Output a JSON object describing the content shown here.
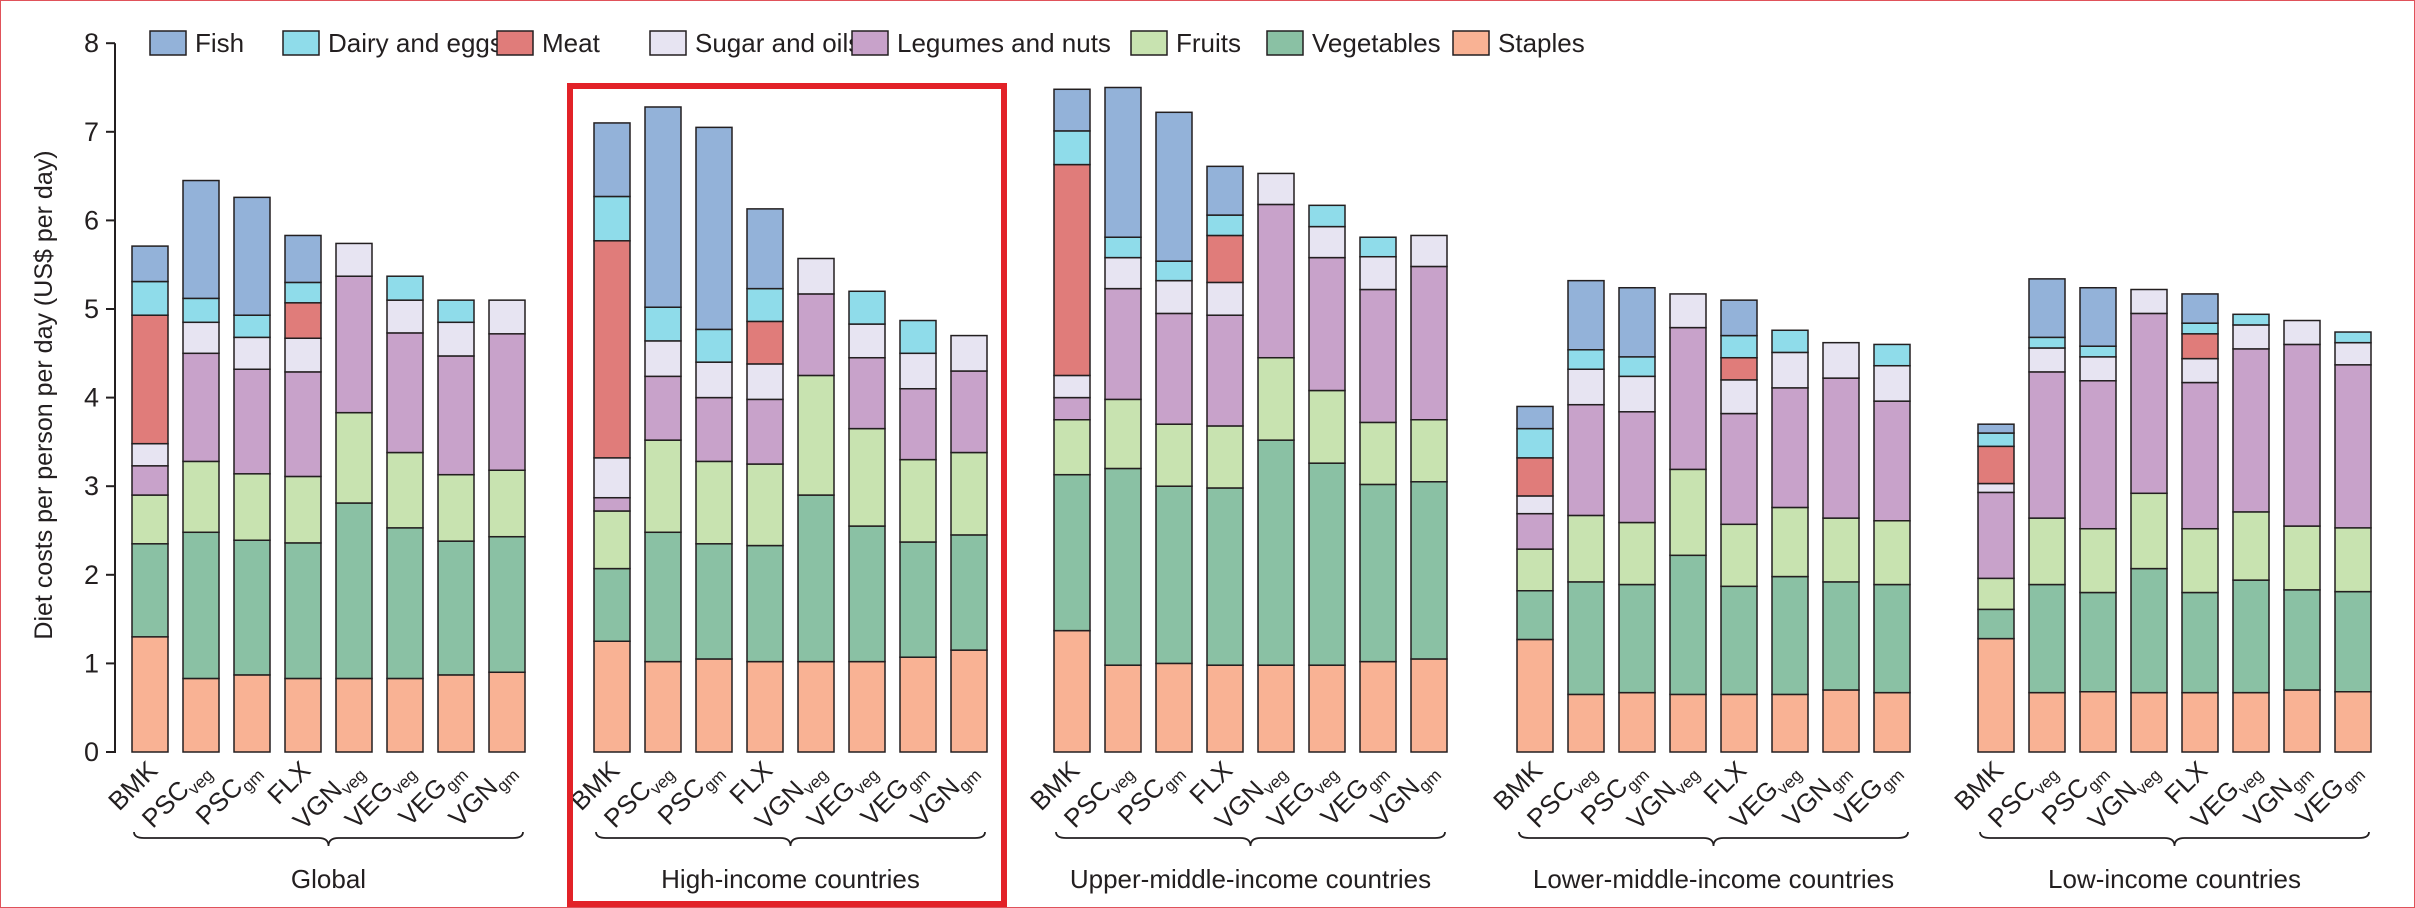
{
  "colors": {
    "Fish": "#93b2d9",
    "Dairy and eggs": "#8fdcea",
    "Meat": "#e07c7a",
    "Sugar and oils": "#e7e4f2",
    "Legumes and nuts": "#c8a2ca",
    "Fruits": "#c8e3b0",
    "Vegetables": "#8ac1a4",
    "Staples": "#f9b294",
    "highlight": "#e22228",
    "frame": "#e0525a"
  },
  "chart_data": {
    "type": "bar",
    "stacked": true,
    "ylabel": "Diet costs per person per day (US$ per day)",
    "ylim": [
      0,
      8
    ],
    "yticks": [
      0,
      1,
      2,
      3,
      4,
      5,
      6,
      7,
      8
    ],
    "grid": false,
    "legend_position": "top",
    "legend": [
      "Fish",
      "Dairy and eggs",
      "Meat",
      "Sugar and oils",
      "Legumes and nuts",
      "Fruits",
      "Vegetables",
      "Staples"
    ],
    "stack_order": [
      "Staples",
      "Vegetables",
      "Fruits",
      "Legumes and nuts",
      "Sugar and oils",
      "Meat",
      "Dairy and eggs",
      "Fish"
    ],
    "highlighted_group": "High-income countries",
    "groups": [
      {
        "name": "Global",
        "bars": [
          {
            "label": "BMK",
            "sub": "",
            "values": {
              "Staples": 1.3,
              "Vegetables": 1.05,
              "Fruits": 0.55,
              "Legumes and nuts": 0.33,
              "Sugar and oils": 0.25,
              "Meat": 1.45,
              "Dairy and eggs": 0.38,
              "Fish": 0.4
            }
          },
          {
            "label": "PSC",
            "sub": "veg",
            "values": {
              "Staples": 0.83,
              "Vegetables": 1.65,
              "Fruits": 0.8,
              "Legumes and nuts": 1.22,
              "Sugar and oils": 0.35,
              "Meat": 0,
              "Dairy and eggs": 0.27,
              "Fish": 1.33
            }
          },
          {
            "label": "PSC",
            "sub": "gm",
            "values": {
              "Staples": 0.87,
              "Vegetables": 1.52,
              "Fruits": 0.75,
              "Legumes and nuts": 1.18,
              "Sugar and oils": 0.36,
              "Meat": 0,
              "Dairy and eggs": 0.25,
              "Fish": 1.33
            }
          },
          {
            "label": "FLX",
            "sub": "",
            "values": {
              "Staples": 0.83,
              "Vegetables": 1.53,
              "Fruits": 0.75,
              "Legumes and nuts": 1.18,
              "Sugar and oils": 0.38,
              "Meat": 0.4,
              "Dairy and eggs": 0.23,
              "Fish": 0.53
            }
          },
          {
            "label": "VGN",
            "sub": "veg",
            "values": {
              "Staples": 0.83,
              "Vegetables": 1.98,
              "Fruits": 1.02,
              "Legumes and nuts": 1.54,
              "Sugar and oils": 0.37,
              "Meat": 0,
              "Dairy and eggs": 0,
              "Fish": 0
            }
          },
          {
            "label": "VEG",
            "sub": "veg",
            "values": {
              "Staples": 0.83,
              "Vegetables": 1.7,
              "Fruits": 0.85,
              "Legumes and nuts": 1.35,
              "Sugar and oils": 0.37,
              "Meat": 0,
              "Dairy and eggs": 0.27,
              "Fish": 0
            }
          },
          {
            "label": "VEG",
            "sub": "gm",
            "values": {
              "Staples": 0.87,
              "Vegetables": 1.51,
              "Fruits": 0.75,
              "Legumes and nuts": 1.34,
              "Sugar and oils": 0.38,
              "Meat": 0,
              "Dairy and eggs": 0.25,
              "Fish": 0
            }
          },
          {
            "label": "VGN",
            "sub": "gm",
            "values": {
              "Staples": 0.9,
              "Vegetables": 1.53,
              "Fruits": 0.75,
              "Legumes and nuts": 1.54,
              "Sugar and oils": 0.38,
              "Meat": 0,
              "Dairy and eggs": 0,
              "Fish": 0
            }
          }
        ]
      },
      {
        "name": "High-income countries",
        "bars": [
          {
            "label": "BMK",
            "sub": "",
            "values": {
              "Staples": 1.25,
              "Vegetables": 0.82,
              "Fruits": 0.65,
              "Legumes and nuts": 0.15,
              "Sugar and oils": 0.45,
              "Meat": 2.45,
              "Dairy and eggs": 0.5,
              "Fish": 0.83
            }
          },
          {
            "label": "PSC",
            "sub": "veg",
            "values": {
              "Staples": 1.02,
              "Vegetables": 1.46,
              "Fruits": 1.04,
              "Legumes and nuts": 0.72,
              "Sugar and oils": 0.4,
              "Meat": 0,
              "Dairy and eggs": 0.38,
              "Fish": 2.26
            }
          },
          {
            "label": "PSC",
            "sub": "gm",
            "values": {
              "Staples": 1.05,
              "Vegetables": 1.3,
              "Fruits": 0.93,
              "Legumes and nuts": 0.72,
              "Sugar and oils": 0.4,
              "Meat": 0,
              "Dairy and eggs": 0.37,
              "Fish": 2.28
            }
          },
          {
            "label": "FLX",
            "sub": "",
            "values": {
              "Staples": 1.02,
              "Vegetables": 1.31,
              "Fruits": 0.92,
              "Legumes and nuts": 0.73,
              "Sugar and oils": 0.4,
              "Meat": 0.48,
              "Dairy and eggs": 0.37,
              "Fish": 0.9
            }
          },
          {
            "label": "VGN",
            "sub": "veg",
            "values": {
              "Staples": 1.02,
              "Vegetables": 1.88,
              "Fruits": 1.35,
              "Legumes and nuts": 0.92,
              "Sugar and oils": 0.4,
              "Meat": 0,
              "Dairy and eggs": 0,
              "Fish": 0
            }
          },
          {
            "label": "VEG",
            "sub": "veg",
            "values": {
              "Staples": 1.02,
              "Vegetables": 1.53,
              "Fruits": 1.1,
              "Legumes and nuts": 0.8,
              "Sugar and oils": 0.38,
              "Meat": 0,
              "Dairy and eggs": 0.37,
              "Fish": 0
            }
          },
          {
            "label": "VEG",
            "sub": "gm",
            "values": {
              "Staples": 1.07,
              "Vegetables": 1.3,
              "Fruits": 0.93,
              "Legumes and nuts": 0.8,
              "Sugar and oils": 0.4,
              "Meat": 0,
              "Dairy and eggs": 0.37,
              "Fish": 0
            }
          },
          {
            "label": "VGN",
            "sub": "gm",
            "values": {
              "Staples": 1.15,
              "Vegetables": 1.3,
              "Fruits": 0.93,
              "Legumes and nuts": 0.92,
              "Sugar and oils": 0.4,
              "Meat": 0,
              "Dairy and eggs": 0,
              "Fish": 0
            }
          }
        ]
      },
      {
        "name": "Upper-middle-income countries",
        "bars": [
          {
            "label": "BMK",
            "sub": "",
            "values": {
              "Staples": 1.37,
              "Vegetables": 1.76,
              "Fruits": 0.62,
              "Legumes and nuts": 0.25,
              "Sugar and oils": 0.25,
              "Meat": 2.38,
              "Dairy and eggs": 0.38,
              "Fish": 0.47
            }
          },
          {
            "label": "PSC",
            "sub": "veg",
            "values": {
              "Staples": 0.98,
              "Vegetables": 2.22,
              "Fruits": 0.78,
              "Legumes and nuts": 1.25,
              "Sugar and oils": 0.35,
              "Meat": 0,
              "Dairy and eggs": 0.23,
              "Fish": 1.69
            }
          },
          {
            "label": "PSC",
            "sub": "gm",
            "values": {
              "Staples": 1.0,
              "Vegetables": 2.0,
              "Fruits": 0.7,
              "Legumes and nuts": 1.25,
              "Sugar and oils": 0.37,
              "Meat": 0,
              "Dairy and eggs": 0.22,
              "Fish": 1.68
            }
          },
          {
            "label": "FLX",
            "sub": "",
            "values": {
              "Staples": 0.98,
              "Vegetables": 2.0,
              "Fruits": 0.7,
              "Legumes and nuts": 1.25,
              "Sugar and oils": 0.37,
              "Meat": 0.53,
              "Dairy and eggs": 0.23,
              "Fish": 0.55
            }
          },
          {
            "label": "VGN",
            "sub": "veg",
            "values": {
              "Staples": 0.98,
              "Vegetables": 2.54,
              "Fruits": 0.93,
              "Legumes and nuts": 1.73,
              "Sugar and oils": 0.35,
              "Meat": 0,
              "Dairy and eggs": 0,
              "Fish": 0
            }
          },
          {
            "label": "VEG",
            "sub": "veg",
            "values": {
              "Staples": 0.98,
              "Vegetables": 2.28,
              "Fruits": 0.82,
              "Legumes and nuts": 1.5,
              "Sugar and oils": 0.35,
              "Meat": 0,
              "Dairy and eggs": 0.24,
              "Fish": 0
            }
          },
          {
            "label": "VEG",
            "sub": "gm",
            "values": {
              "Staples": 1.02,
              "Vegetables": 2.0,
              "Fruits": 0.7,
              "Legumes and nuts": 1.5,
              "Sugar and oils": 0.37,
              "Meat": 0,
              "Dairy and eggs": 0.22,
              "Fish": 0
            }
          },
          {
            "label": "VGN",
            "sub": "gm",
            "values": {
              "Staples": 1.05,
              "Vegetables": 2.0,
              "Fruits": 0.7,
              "Legumes and nuts": 1.73,
              "Sugar and oils": 0.35,
              "Meat": 0,
              "Dairy and eggs": 0,
              "Fish": 0
            }
          }
        ]
      },
      {
        "name": "Lower-middle-income countries",
        "bars": [
          {
            "label": "BMK",
            "sub": "",
            "values": {
              "Staples": 1.27,
              "Vegetables": 0.55,
              "Fruits": 0.47,
              "Legumes and nuts": 0.4,
              "Sugar and oils": 0.2,
              "Meat": 0.43,
              "Dairy and eggs": 0.33,
              "Fish": 0.25
            }
          },
          {
            "label": "PSC",
            "sub": "veg",
            "values": {
              "Staples": 0.65,
              "Vegetables": 1.27,
              "Fruits": 0.75,
              "Legumes and nuts": 1.25,
              "Sugar and oils": 0.4,
              "Meat": 0,
              "Dairy and eggs": 0.22,
              "Fish": 0.78
            }
          },
          {
            "label": "PSC",
            "sub": "gm",
            "values": {
              "Staples": 0.67,
              "Vegetables": 1.22,
              "Fruits": 0.7,
              "Legumes and nuts": 1.25,
              "Sugar and oils": 0.4,
              "Meat": 0,
              "Dairy and eggs": 0.22,
              "Fish": 0.78
            }
          },
          {
            "label": "VGN",
            "sub": "veg",
            "values": {
              "Staples": 0.65,
              "Vegetables": 1.57,
              "Fruits": 0.97,
              "Legumes and nuts": 1.6,
              "Sugar and oils": 0.38,
              "Meat": 0,
              "Dairy and eggs": 0,
              "Fish": 0
            }
          },
          {
            "label": "FLX",
            "sub": "",
            "values": {
              "Staples": 0.65,
              "Vegetables": 1.22,
              "Fruits": 0.7,
              "Legumes and nuts": 1.25,
              "Sugar and oils": 0.38,
              "Meat": 0.25,
              "Dairy and eggs": 0.25,
              "Fish": 0.4
            }
          },
          {
            "label": "VEG",
            "sub": "veg",
            "values": {
              "Staples": 0.65,
              "Vegetables": 1.33,
              "Fruits": 0.78,
              "Legumes and nuts": 1.35,
              "Sugar and oils": 0.4,
              "Meat": 0,
              "Dairy and eggs": 0.25,
              "Fish": 0
            }
          },
          {
            "label": "VGN",
            "sub": "gm",
            "values": {
              "Staples": 0.7,
              "Vegetables": 1.22,
              "Fruits": 0.72,
              "Legumes and nuts": 1.58,
              "Sugar and oils": 0.4,
              "Meat": 0,
              "Dairy and eggs": 0,
              "Fish": 0
            }
          },
          {
            "label": "VEG",
            "sub": "gm",
            "values": {
              "Staples": 0.67,
              "Vegetables": 1.22,
              "Fruits": 0.72,
              "Legumes and nuts": 1.35,
              "Sugar and oils": 0.4,
              "Meat": 0,
              "Dairy and eggs": 0.24,
              "Fish": 0
            }
          }
        ]
      },
      {
        "name": "Low-income countries",
        "bars": [
          {
            "label": "BMK",
            "sub": "",
            "values": {
              "Staples": 1.28,
              "Vegetables": 0.33,
              "Fruits": 0.35,
              "Legumes and nuts": 0.97,
              "Sugar and oils": 0.1,
              "Meat": 0.42,
              "Dairy and eggs": 0.15,
              "Fish": 0.1
            }
          },
          {
            "label": "PSC",
            "sub": "veg",
            "values": {
              "Staples": 0.67,
              "Vegetables": 1.22,
              "Fruits": 0.75,
              "Legumes and nuts": 1.65,
              "Sugar and oils": 0.27,
              "Meat": 0,
              "Dairy and eggs": 0.12,
              "Fish": 0.66
            }
          },
          {
            "label": "PSC",
            "sub": "gm",
            "values": {
              "Staples": 0.68,
              "Vegetables": 1.12,
              "Fruits": 0.72,
              "Legumes and nuts": 1.67,
              "Sugar and oils": 0.27,
              "Meat": 0,
              "Dairy and eggs": 0.12,
              "Fish": 0.66
            }
          },
          {
            "label": "VGN",
            "sub": "veg",
            "values": {
              "Staples": 0.67,
              "Vegetables": 1.4,
              "Fruits": 0.85,
              "Legumes and nuts": 2.03,
              "Sugar and oils": 0.27,
              "Meat": 0,
              "Dairy and eggs": 0,
              "Fish": 0
            }
          },
          {
            "label": "FLX",
            "sub": "",
            "values": {
              "Staples": 0.67,
              "Vegetables": 1.13,
              "Fruits": 0.72,
              "Legumes and nuts": 1.65,
              "Sugar and oils": 0.27,
              "Meat": 0.28,
              "Dairy and eggs": 0.12,
              "Fish": 0.33
            }
          },
          {
            "label": "VEG",
            "sub": "veg",
            "values": {
              "Staples": 0.67,
              "Vegetables": 1.27,
              "Fruits": 0.77,
              "Legumes and nuts": 1.84,
              "Sugar and oils": 0.27,
              "Meat": 0,
              "Dairy and eggs": 0.12,
              "Fish": 0
            }
          },
          {
            "label": "VGN",
            "sub": "gm",
            "values": {
              "Staples": 0.7,
              "Vegetables": 1.13,
              "Fruits": 0.72,
              "Legumes and nuts": 2.05,
              "Sugar and oils": 0.27,
              "Meat": 0,
              "Dairy and eggs": 0,
              "Fish": 0
            }
          },
          {
            "label": "VEG",
            "sub": "gm",
            "values": {
              "Staples": 0.68,
              "Vegetables": 1.13,
              "Fruits": 0.72,
              "Legumes and nuts": 1.84,
              "Sugar and oils": 0.25,
              "Meat": 0,
              "Dairy and eggs": 0.12,
              "Fish": 0
            }
          }
        ]
      }
    ]
  }
}
